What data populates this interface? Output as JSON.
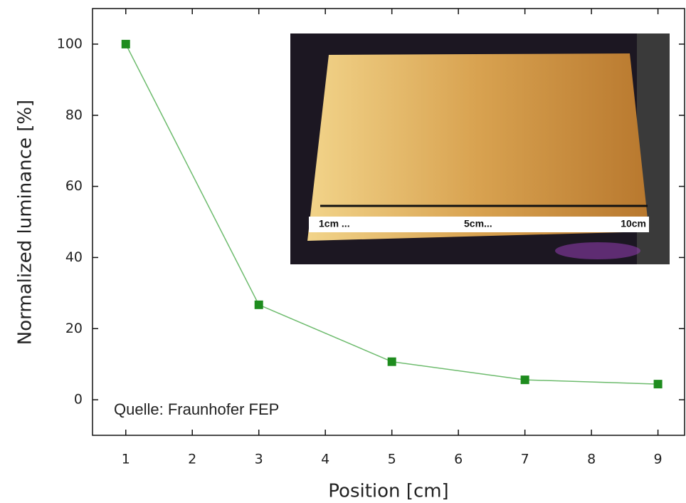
{
  "chart_data": {
    "type": "line",
    "x": [
      1,
      3,
      5,
      7,
      9
    ],
    "values": [
      100,
      26.7,
      10.7,
      5.6,
      4.4
    ],
    "color": "#6dbb6d",
    "marker_color": "#1e8c1e",
    "xlim": [
      0.5,
      9.4
    ],
    "xticks": [
      1,
      2,
      3,
      4,
      5,
      6,
      7,
      8,
      9
    ],
    "ylim": [
      -10,
      110
    ],
    "yticks": [
      0,
      20,
      40,
      60,
      80,
      100
    ],
    "xlabel": "Position [cm]",
    "ylabel": "Normalized luminance [%]",
    "annotation": "Quelle: Fraunhofer FEP",
    "inset_labels": [
      "1cm ...",
      "5cm...",
      "10cm"
    ]
  }
}
